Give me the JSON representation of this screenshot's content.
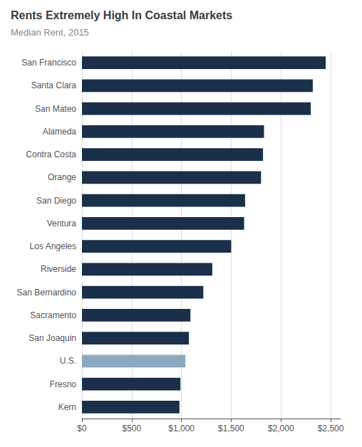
{
  "chart_data": {
    "type": "bar",
    "orientation": "horizontal",
    "title": "Rents Extremely High In Coastal Markets",
    "subtitle": "Median Rent, 2015",
    "categories": [
      "San Francisco",
      "Santa Clara",
      "San Mateo",
      "Alameda",
      "Contra Costa",
      "Orange",
      "San Diego",
      "Ventura",
      "Los Angeles",
      "Riverside",
      "San Bernardino",
      "Sacramento",
      "San Joaquin",
      "U.S.",
      "Fresno",
      "Kern"
    ],
    "values": [
      2450,
      2320,
      2300,
      1830,
      1820,
      1800,
      1640,
      1630,
      1500,
      1310,
      1220,
      1090,
      1075,
      1040,
      990,
      980
    ],
    "colors": [
      "#1a2f4a",
      "#1a2f4a",
      "#1a2f4a",
      "#1a2f4a",
      "#1a2f4a",
      "#1a2f4a",
      "#1a2f4a",
      "#1a2f4a",
      "#1a2f4a",
      "#1a2f4a",
      "#1a2f4a",
      "#1a2f4a",
      "#1a2f4a",
      "#8baabf",
      "#1a2f4a",
      "#1a2f4a"
    ],
    "xlim": [
      0,
      2600
    ],
    "xticks": [
      {
        "value": 0,
        "label": "$0"
      },
      {
        "value": 500,
        "label": "$500"
      },
      {
        "value": 1000,
        "label": "$1,000"
      },
      {
        "value": 1500,
        "label": "$1,500"
      },
      {
        "value": 2000,
        "label": "$2,000"
      },
      {
        "value": 2500,
        "label": "$2,500"
      }
    ],
    "grid": true
  }
}
